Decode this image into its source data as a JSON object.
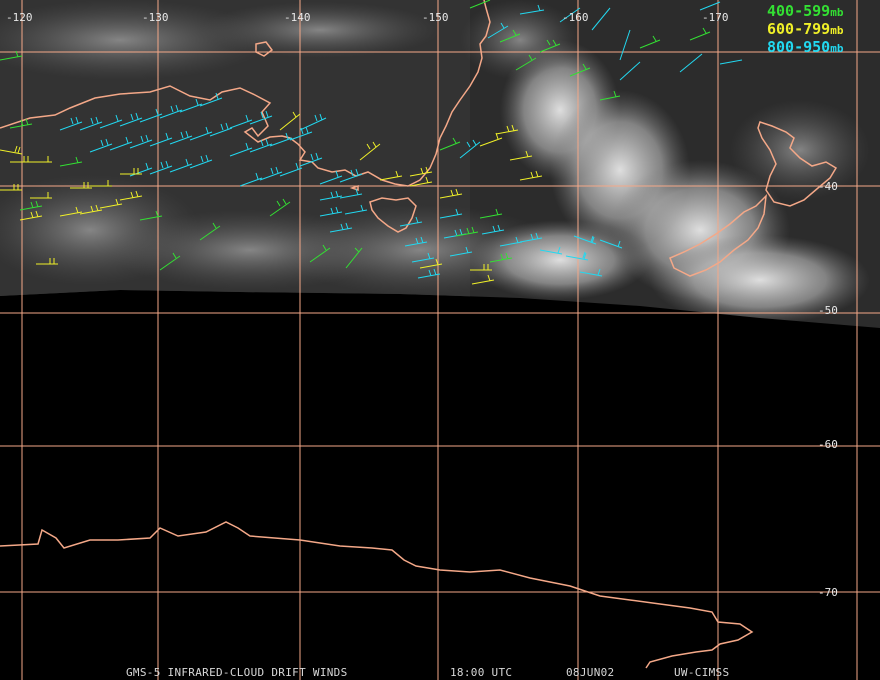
{
  "colors": {
    "background": "#000000",
    "grid": "#f4a888",
    "coast": "#f4a888",
    "level_400_599": "#33e033",
    "level_600_799": "#f0f028",
    "level_800_950": "#22d8f0",
    "footer_text": "#d8d8d8"
  },
  "legend": [
    {
      "range": "400-599",
      "unit": "mb",
      "color": "#33e033"
    },
    {
      "range": "600-799",
      "unit": "mb",
      "color": "#f0f028"
    },
    {
      "range": "800-950",
      "unit": "mb",
      "color": "#22d8f0"
    }
  ],
  "grid": {
    "longitude_labels": [
      "-120",
      "-130",
      "-140",
      "-150",
      "-160",
      "-170"
    ],
    "latitude_labels": [
      "-40",
      "-50",
      "-60",
      "-70"
    ]
  },
  "footer": {
    "product": "GMS-5 INFRARED-CLOUD DRIFT WINDS",
    "time": "18:00 UTC",
    "date": "08JUN02",
    "source": "UW-CIMSS"
  }
}
